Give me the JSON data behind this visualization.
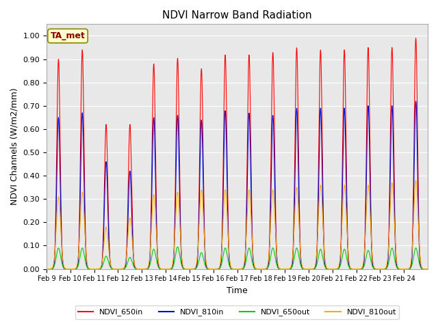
{
  "title": "NDVI Narrow Band Radiation",
  "ylabel": "NDVI Channels (W/m2/mm)",
  "xlabel": "Time",
  "ylim": [
    0.0,
    1.05
  ],
  "bg_color": "#e8e8e8",
  "annotation_text": "TA_met",
  "annotation_bg": "#ffffcc",
  "annotation_text_color": "#8b0000",
  "line_colors": {
    "NDVI_650in": "#ff0000",
    "NDVI_810in": "#0000cc",
    "NDVI_650out": "#00cc00",
    "NDVI_810out": "#ffaa00"
  },
  "x_tick_labels": [
    "Feb 9",
    "Feb 10",
    "Feb 11",
    "Feb 12",
    "Feb 13",
    "Feb 14",
    "Feb 15",
    "Feb 16",
    "Feb 17",
    "Feb 18",
    "Feb 19",
    "Feb 20",
    "Feb 21",
    "Feb 22",
    "Feb 23",
    "Feb 24"
  ],
  "peak_650in": [
    0.9,
    0.94,
    0.62,
    0.62,
    0.88,
    0.905,
    0.86,
    0.92,
    0.92,
    0.93,
    0.95,
    0.94,
    0.94,
    0.95,
    0.95,
    0.99
  ],
  "peak_810in": [
    0.65,
    0.67,
    0.46,
    0.42,
    0.65,
    0.66,
    0.64,
    0.68,
    0.67,
    0.66,
    0.69,
    0.69,
    0.69,
    0.7,
    0.7,
    0.72
  ],
  "peak_810out": [
    0.31,
    0.33,
    0.18,
    0.22,
    0.32,
    0.33,
    0.34,
    0.34,
    0.34,
    0.34,
    0.35,
    0.36,
    0.36,
    0.36,
    0.37,
    0.38
  ],
  "peak_650out": [
    0.09,
    0.09,
    0.055,
    0.05,
    0.085,
    0.095,
    0.07,
    0.09,
    0.09,
    0.09,
    0.09,
    0.085,
    0.085,
    0.08,
    0.09,
    0.09
  ]
}
